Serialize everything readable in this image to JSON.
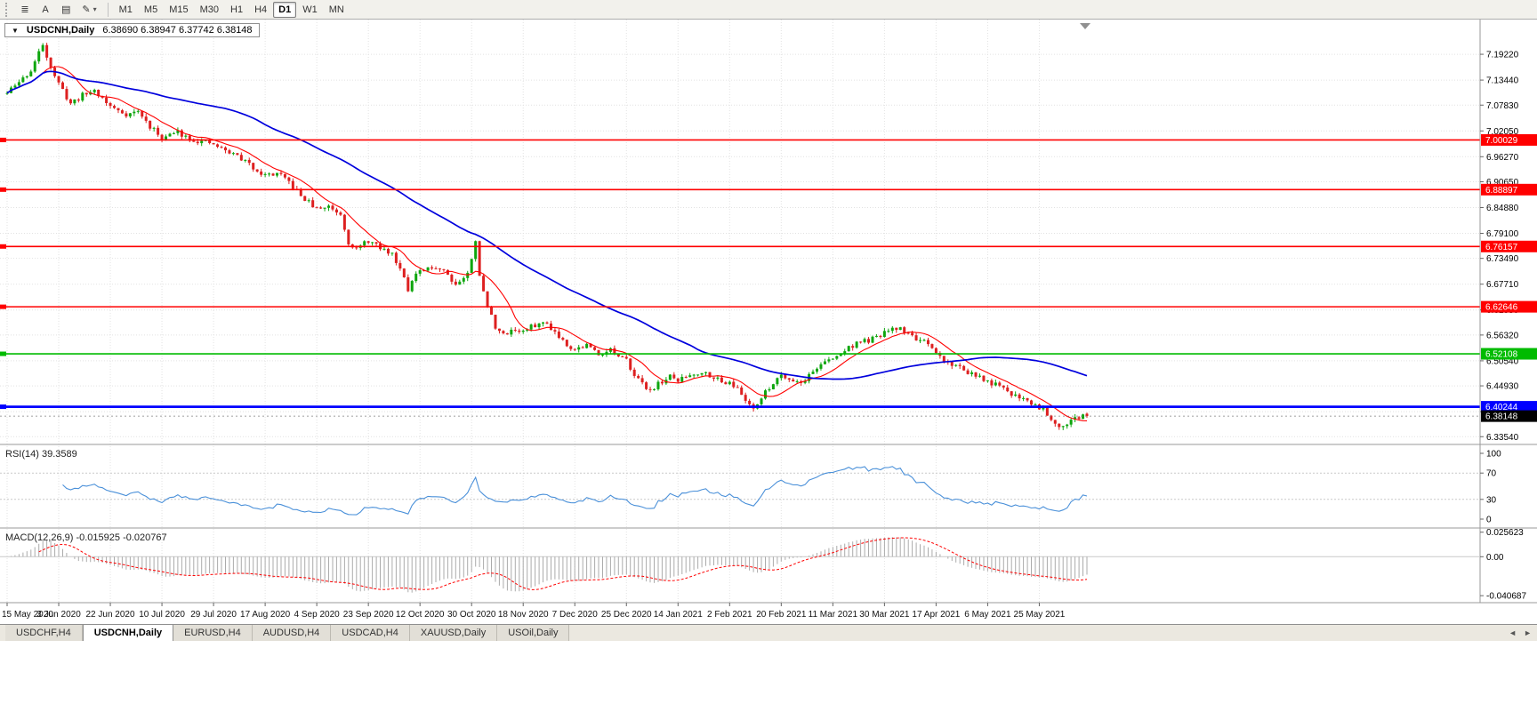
{
  "toolbar": {
    "icon_buttons": [
      {
        "name": "charts-bar-icon",
        "glyph": "≣"
      },
      {
        "name": "text-tool-icon",
        "glyph": "A"
      },
      {
        "name": "template-icon",
        "glyph": "▤"
      },
      {
        "name": "draw-tool-icon",
        "glyph": "✎",
        "dropdown": true
      }
    ],
    "timeframes": [
      {
        "label": "M1"
      },
      {
        "label": "M5"
      },
      {
        "label": "M15"
      },
      {
        "label": "M30"
      },
      {
        "label": "H1"
      },
      {
        "label": "H4"
      },
      {
        "label": "D1",
        "active": true
      },
      {
        "label": "W1"
      },
      {
        "label": "MN"
      }
    ]
  },
  "chart": {
    "menu_arrow": "▼",
    "title": "USDCNH,Daily",
    "ohlc": "6.38690 6.38947 6.37742 6.38148"
  },
  "chart_data": {
    "type": "candlestick",
    "symbol": "USDCNH",
    "period": "Daily",
    "ohlc": {
      "open": 6.3869,
      "high": 6.38947,
      "low": 6.37742,
      "close": 6.38148
    },
    "price_axis": [
      "7.19220",
      "7.13440",
      "7.07830",
      "7.02050",
      "6.96270",
      "6.90650",
      "6.84880",
      "6.79100",
      "6.73490",
      "6.67710",
      "6.61930",
      "6.56320",
      "6.50540",
      "6.44930",
      "6.39150",
      "6.33540"
    ],
    "price_range": {
      "min": 6.318,
      "max": 7.27
    },
    "x_labels": [
      "15 May 2020",
      "3 Jun 2020",
      "22 Jun 2020",
      "10 Jul 2020",
      "29 Jul 2020",
      "17 Aug 2020",
      "4 Sep 2020",
      "23 Sep 2020",
      "12 Oct 2020",
      "30 Oct 2020",
      "18 Nov 2020",
      "7 Dec 2020",
      "25 Dec 2020",
      "14 Jan 2021",
      "2 Feb 2021",
      "20 Feb 2021",
      "11 Mar 2021",
      "30 Mar 2021",
      "17 Apr 2021",
      "6 May 2021",
      "25 May 2021"
    ],
    "candles_per_label": 13,
    "num_candles": 273,
    "seed": 11,
    "volatility": {
      "close": 0.012,
      "wick": 0.007
    },
    "trend_anchors": [
      [
        0,
        7.105
      ],
      [
        3,
        7.13
      ],
      [
        6,
        7.155
      ],
      [
        9,
        7.215
      ],
      [
        11,
        7.165
      ],
      [
        13,
        7.125
      ],
      [
        16,
        7.082
      ],
      [
        19,
        7.1
      ],
      [
        22,
        7.112
      ],
      [
        26,
        7.075
      ],
      [
        30,
        7.058
      ],
      [
        33,
        7.064
      ],
      [
        36,
        7.03
      ],
      [
        39,
        7.005
      ],
      [
        43,
        7.018
      ],
      [
        47,
        7.0
      ],
      [
        52,
        6.99
      ],
      [
        55,
        6.976
      ],
      [
        58,
        6.965
      ],
      [
        61,
        6.945
      ],
      [
        65,
        6.921
      ],
      [
        68,
        6.925
      ],
      [
        71,
        6.905
      ],
      [
        74,
        6.875
      ],
      [
        78,
        6.845
      ],
      [
        81,
        6.852
      ],
      [
        84,
        6.835
      ],
      [
        86,
        6.772
      ],
      [
        88,
        6.755
      ],
      [
        91,
        6.775
      ],
      [
        94,
        6.757
      ],
      [
        97,
        6.745
      ],
      [
        100,
        6.697
      ],
      [
        101,
        6.667
      ],
      [
        103,
        6.698
      ],
      [
        105,
        6.707
      ],
      [
        108,
        6.716
      ],
      [
        110,
        6.71
      ],
      [
        113,
        6.677
      ],
      [
        116,
        6.7
      ],
      [
        117,
        6.732
      ],
      [
        118,
        6.778
      ],
      [
        119,
        6.7
      ],
      [
        120,
        6.657
      ],
      [
        121,
        6.627
      ],
      [
        123,
        6.583
      ],
      [
        125,
        6.562
      ],
      [
        127,
        6.576
      ],
      [
        130,
        6.571
      ],
      [
        133,
        6.586
      ],
      [
        136,
        6.59
      ],
      [
        139,
        6.561
      ],
      [
        141,
        6.543
      ],
      [
        143,
        6.531
      ],
      [
        146,
        6.541
      ],
      [
        149,
        6.521
      ],
      [
        152,
        6.531
      ],
      [
        154,
        6.512
      ],
      [
        156,
        6.506
      ],
      [
        158,
        6.477
      ],
      [
        160,
        6.452
      ],
      [
        162,
        6.441
      ],
      [
        165,
        6.459
      ],
      [
        167,
        6.469
      ],
      [
        169,
        6.461
      ],
      [
        172,
        6.474
      ],
      [
        175,
        6.481
      ],
      [
        178,
        6.471
      ],
      [
        180,
        6.456
      ],
      [
        182,
        6.461
      ],
      [
        184,
        6.441
      ],
      [
        186,
        6.417
      ],
      [
        188,
        6.402
      ],
      [
        190,
        6.421
      ],
      [
        192,
        6.446
      ],
      [
        195,
        6.476
      ],
      [
        197,
        6.466
      ],
      [
        200,
        6.456
      ],
      [
        203,
        6.481
      ],
      [
        205,
        6.499
      ],
      [
        208,
        6.509
      ],
      [
        211,
        6.529
      ],
      [
        214,
        6.546
      ],
      [
        217,
        6.551
      ],
      [
        219,
        6.556
      ],
      [
        221,
        6.569
      ],
      [
        223,
        6.574
      ],
      [
        225,
        6.579
      ],
      [
        227,
        6.566
      ],
      [
        229,
        6.556
      ],
      [
        231,
        6.546
      ],
      [
        234,
        6.521
      ],
      [
        237,
        6.501
      ],
      [
        240,
        6.491
      ],
      [
        243,
        6.476
      ],
      [
        245,
        6.466
      ],
      [
        247,
        6.459
      ],
      [
        249,
        6.451
      ],
      [
        251,
        6.441
      ],
      [
        253,
        6.431
      ],
      [
        255,
        6.426
      ],
      [
        257,
        6.416
      ],
      [
        259,
        6.406
      ],
      [
        261,
        6.399
      ],
      [
        263,
        6.376
      ],
      [
        265,
        6.361
      ],
      [
        267,
        6.366
      ],
      [
        269,
        6.376
      ],
      [
        271,
        6.381
      ],
      [
        272,
        6.3815
      ]
    ],
    "ma_periods": {
      "fast": 10,
      "slow": 56
    },
    "colors": {
      "up": "#0EA60E",
      "down": "#DD2020",
      "ma_fast": "#FF0000",
      "ma_slow": "#0000DD",
      "grid": "#E2E2E2",
      "rsi": "#4A90D9",
      "macd_hist": "#ABABAB",
      "macd_signal": "#FF0000"
    },
    "hlines": [
      {
        "value": 7.00029,
        "label": "7.00029",
        "color": "#FF0000",
        "width": 1.6
      },
      {
        "value": 6.88897,
        "label": "6.88897",
        "color": "#FF0000",
        "width": 1.6
      },
      {
        "value": 6.76157,
        "label": "6.76157",
        "color": "#FF0000",
        "width": 1.6
      },
      {
        "value": 6.62646,
        "label": "6.62646",
        "color": "#FF0000",
        "width": 1.6
      },
      {
        "value": 6.52108,
        "label": "6.52108",
        "color": "#00BB00",
        "width": 1.6
      },
      {
        "value": 6.40244,
        "label": "6.40244",
        "color": "#0000FF",
        "width": 2.8
      }
    ],
    "bid_line": {
      "value": 6.38148,
      "label": "6.38148",
      "badge_color": "#000000"
    },
    "rsi": {
      "name": "RSI(14)",
      "value": "39.3589",
      "period": 14,
      "axis": [
        "100",
        "70",
        "30",
        "0"
      ],
      "guides": [
        70,
        30
      ]
    },
    "macd": {
      "name": "MACD(12,26,9)",
      "values": "-0.015925 -0.020767",
      "fast": 12,
      "slow": 26,
      "signal": 9,
      "axis": [
        {
          "v": 0.025623,
          "label": "0.025623"
        },
        {
          "v": 0,
          "label": "0.00"
        },
        {
          "v": -0.040687,
          "label": "-0.040687"
        }
      ]
    }
  },
  "tabs": [
    {
      "label": "USDCHF,H4"
    },
    {
      "label": "USDCNH,Daily",
      "active": true
    },
    {
      "label": "EURUSD,H4"
    },
    {
      "label": "AUDUSD,H4"
    },
    {
      "label": "USDCAD,H4"
    },
    {
      "label": "XAUUSD,Daily"
    },
    {
      "label": "USOil,Daily"
    }
  ],
  "tab_scroll": {
    "left": "◄",
    "right": "►"
  }
}
